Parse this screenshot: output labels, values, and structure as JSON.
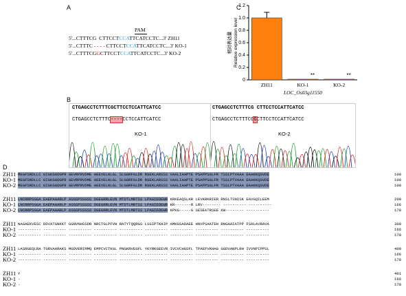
{
  "panels": {
    "a": "A",
    "b": "B",
    "c": "C",
    "d": "D"
  },
  "panel_a": {
    "pam": "PAM",
    "zh11": {
      "pre": "5'...CTTTCG  CTTCCT",
      "pam": "CCA",
      "post": "TTCATCCTC...3' ZH11"
    },
    "ko1": {
      "pre": "5'...CTTTC",
      "del": " - - - - ",
      "post": "CTTCCT",
      "pam": "CCA",
      "tail": "TTCATCCTC...3' KO-1"
    },
    "ko2": {
      "pre": "5'...CTTTCG",
      "ins": "G",
      "mid": "CTTCCT",
      "pam": "CCA",
      "post": "TTCATCCTC...3' KO-2"
    }
  },
  "panel_b": {
    "left": {
      "header": "CTGAGCCTCTTTCGCTTCCTCCATTCATCC",
      "seq_pre": "CTGAGCCTCTTTC",
      "seq_mark": "----",
      "seq_post": "CCTCCATTCATCC",
      "label": "KO-1"
    },
    "right": {
      "header": "CTGAGCCTCTTTCG CTTCCTCCATTCATCC",
      "seq_pre": "CTGAGCCTCTTTCG",
      "seq_mark": "G",
      "seq_post": "CTTCCTCCATTCATCC",
      "label": "KO-2"
    }
  },
  "chart_data": {
    "type": "bar",
    "categories": [
      "ZH11",
      "KO-1",
      "KO-2"
    ],
    "values": [
      1.0,
      0.01,
      0.01
    ],
    "errors": [
      0.09,
      0,
      0
    ],
    "significance": [
      "",
      "**",
      "**"
    ],
    "ylim": [
      0,
      1.2
    ],
    "yticks": [
      "0",
      "0.2",
      "0.4",
      "0.6",
      "0.8",
      "1.0",
      "1.2"
    ],
    "ylabel": "Relative expression level",
    "ylabel_cn": "相对表达量",
    "xlabel": "LOC_Os03g11550",
    "colors": {
      "bar": "#ff7f0e"
    }
  },
  "alignment": {
    "blocks": [
      {
        "rows": [
          {
            "label": "ZH11",
            "seq": "MEGFSRDLLC GIGKGGDGPR GEVRPRVDME AEEVELNLGL SLGGRFGLDR RGEKLARSSS VAALIAAPTE PSAPPSGLFR TSSLPTVAAA EAAKKQGVDE",
            "end": "100",
            "hl": true
          },
          {
            "label": "KO-1",
            "seq": "MEGFSRDLLC GIGKGGDGPR GEVRPRVDME AEEVELNLGL SLGGRFGLDR RGEKLARSSS VAALIAAPTE PSAPPSGLFR TSSLPTVAAA EAAKKQGVDE",
            "end": "100",
            "hl": true
          },
          {
            "label": "KO-2",
            "seq": "MEGFSRDLLC GIGKGGDGPR GEVRPRVDME AEEVELNLGL SLGGRFGLDR RGEKLARSSS VAALIAAPTE PSAPPSGLFR TSSLPTVAAA EAAKKQGVDE",
            "end": "100",
            "hl": true
          }
        ]
      },
      {
        "rows": [
          {
            "label": "ZH11",
            "hlseq": "LNCRRPSGGA EAEPAAARLP ASGSPSSGSS DGEGRRLEVN MTDTLMRTSS LPAGIEDEWR",
            "tail": " KRKEAQSLKR LEVKRKRIER RNSLTSNISK EAVGQILEEM",
            "end": "200"
          },
          {
            "label": "KO-1",
            "hlseq": "LNCRRPSGGA EAEPAAARLP ASGSPSSGSS DGEGRRLEVN MTDTLMRTSS LPAGIEDEWR",
            "tail": " KR-------R LRV-------- ---------- ----------",
            "end": "166"
          },
          {
            "label": "KO-2",
            "hlseq": "LNCRRPSGGA EAEPAAARLP ASGSPSSGSS DGEGRRLEVN MTDTLMRTSS LPAGIEDEWR",
            "tail": " KPKG-----G SESEATRSEE KW-------- ----------",
            "end": "178"
          }
        ]
      },
      {
        "rows": [
          {
            "label": "ZH11",
            "seq": "NAGAEKVESC DDVATGNKKT GGNVNHSSDR NRCTGLPFVH RATYTQQRGS LSGIPTKHIP AMKGSADAEE HNVPSAATEH RNGAAIATPP FSALAVRAVA",
            "end": "300"
          },
          {
            "label": "KO-1",
            "seq": "---------- ---------- ---------- ---------- ---------- ---------- ---------- ---------- ---------- ----------",
            "end": "166"
          },
          {
            "label": "KO-2",
            "seq": "---------- ---------- ---------- ---------- ---------- ---------- ---------- ---------- ---------- ----------",
            "end": "178"
          }
        ]
      },
      {
        "rows": [
          {
            "label": "ZH11",
            "seq": "LASRGEQLRA TGRVAARAKS MGDVERIMMQ EMPCVCTKGL PNGKRVEGFL YKYRKGEEVR IVCVCHGSFL TPAEFVKHAG GGDVANPLRH IVVNPIPPSL",
            "end": "400"
          },
          {
            "label": "KO-1",
            "seq": "---------- ---------- ---------- ---------- ---------- ---------- ---------- ---------- ---------- ----------",
            "end": "166"
          },
          {
            "label": "KO-2",
            "seq": "---------- ---------- ---------- ---------- ---------- ---------- ---------- ---------- ---------- ----------",
            "end": "178"
          }
        ]
      },
      {
        "rows": [
          {
            "label": "ZH11",
            "seq": "Y",
            "end": "401"
          },
          {
            "label": "KO-1",
            "seq": "-",
            "end": "166"
          },
          {
            "label": "KO-2",
            "seq": "-",
            "end": "178"
          }
        ]
      }
    ]
  }
}
